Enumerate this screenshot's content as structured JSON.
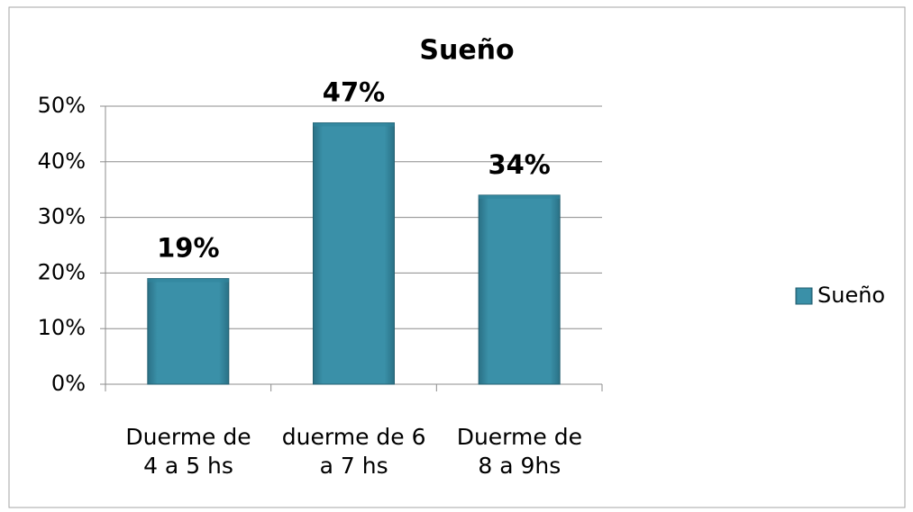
{
  "chart_data": {
    "type": "bar",
    "title": "Sueño",
    "categories": [
      "Duerme de\n4 a 5 hs",
      "duerme de 6\na 7 hs",
      "Duerme de\n8 a 9hs"
    ],
    "series": [
      {
        "name": "Sueño",
        "color": "#31859c",
        "values": [
          19,
          47,
          34
        ],
        "value_labels": [
          "19%",
          "47%",
          "34%"
        ]
      }
    ],
    "ylim": [
      0,
      50
    ],
    "yticks": [
      {
        "value": 0,
        "label": "0%"
      },
      {
        "value": 10,
        "label": "10%"
      },
      {
        "value": 20,
        "label": "20%"
      },
      {
        "value": 30,
        "label": "30%"
      },
      {
        "value": 40,
        "label": "40%"
      },
      {
        "value": 50,
        "label": "50%"
      }
    ],
    "grid": true,
    "legend": "right"
  }
}
